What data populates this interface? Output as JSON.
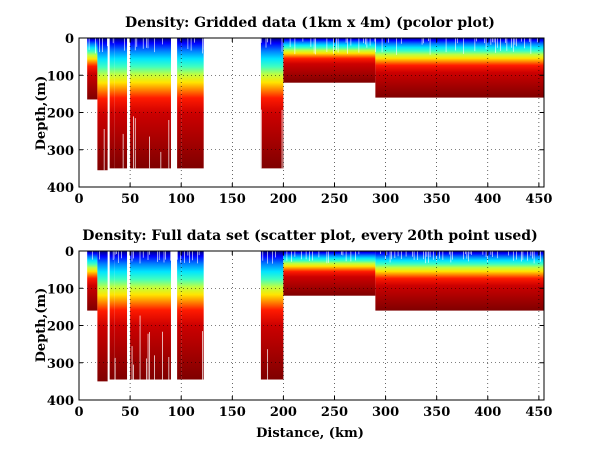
{
  "chart_data": [
    {
      "type": "heatmap",
      "title": "Density: Gridded data (1km x 4m) (pcolor plot)",
      "xlabel": "",
      "ylabel": "Depth,(m)",
      "xlim": [
        0,
        455
      ],
      "ylim": [
        0,
        400
      ],
      "y_reversed": true,
      "grid": true,
      "colormap": "jet",
      "xticks": [
        0,
        50,
        100,
        150,
        200,
        250,
        300,
        350,
        400,
        450
      ],
      "yticks": [
        0,
        100,
        200,
        300,
        400
      ],
      "coverage_segments": [
        {
          "x": [
            8,
            18
          ],
          "max_depth": 165
        },
        {
          "x": [
            18,
            28
          ],
          "max_depth": 355
        },
        {
          "x": [
            30,
            35
          ],
          "max_depth": 350
        },
        {
          "x": [
            35,
            47
          ],
          "max_depth": 350
        },
        {
          "x": [
            50,
            90
          ],
          "max_depth": 350
        },
        {
          "x": [
            96,
            100
          ],
          "max_depth": 350
        },
        {
          "x": [
            100,
            122
          ],
          "max_depth": 350
        },
        {
          "x": [
            178,
            200
          ],
          "max_depth": 350
        },
        {
          "x": [
            200,
            290
          ],
          "max_depth": 120
        },
        {
          "x": [
            290,
            455
          ],
          "max_depth": 160
        }
      ],
      "data_gaps": [
        [
          28,
          30
        ],
        [
          47,
          50
        ],
        [
          90,
          96
        ],
        [
          122,
          178
        ]
      ]
    },
    {
      "type": "scatter",
      "title": "Density: Full data set (scatter plot, every 20th point used)",
      "xlabel": "Distance, (km)",
      "ylabel": "Depth,(m)",
      "xlim": [
        0,
        455
      ],
      "ylim": [
        0,
        400
      ],
      "y_reversed": true,
      "grid": true,
      "colormap": "jet",
      "xticks": [
        0,
        50,
        100,
        150,
        200,
        250,
        300,
        350,
        400,
        450
      ],
      "yticks": [
        0,
        100,
        200,
        300,
        400
      ],
      "coverage_segments": [
        {
          "x": [
            8,
            18
          ],
          "max_depth": 160
        },
        {
          "x": [
            18,
            28
          ],
          "max_depth": 350
        },
        {
          "x": [
            30,
            35
          ],
          "max_depth": 345
        },
        {
          "x": [
            35,
            47
          ],
          "max_depth": 345
        },
        {
          "x": [
            50,
            90
          ],
          "max_depth": 345
        },
        {
          "x": [
            96,
            100
          ],
          "max_depth": 345
        },
        {
          "x": [
            100,
            122
          ],
          "max_depth": 345
        },
        {
          "x": [
            178,
            200
          ],
          "max_depth": 345
        },
        {
          "x": [
            200,
            290
          ],
          "max_depth": 120
        },
        {
          "x": [
            290,
            455
          ],
          "max_depth": 160
        }
      ],
      "data_gaps": [
        [
          28,
          30
        ],
        [
          47,
          50
        ],
        [
          90,
          96
        ],
        [
          122,
          178
        ]
      ]
    }
  ]
}
